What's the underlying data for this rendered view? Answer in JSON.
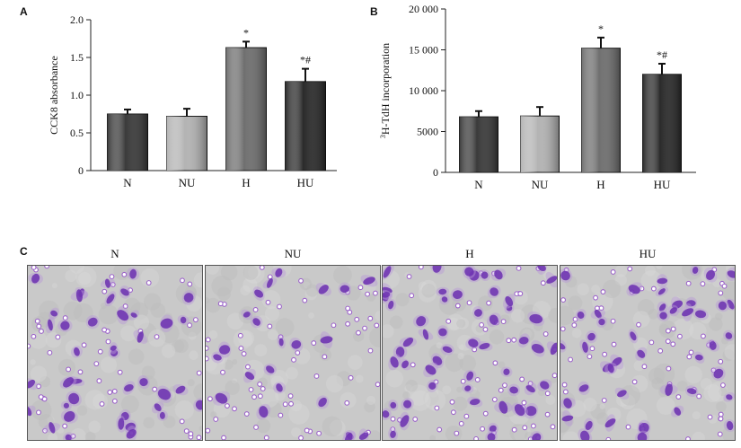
{
  "panels": {
    "a_letter": "A",
    "b_letter": "B",
    "c_letter": "C"
  },
  "chart_data": [
    {
      "type": "bar",
      "categories": [
        "N",
        "NU",
        "H",
        "HU"
      ],
      "values": [
        0.75,
        0.72,
        1.63,
        1.18
      ],
      "errors": [
        0.06,
        0.1,
        0.08,
        0.17
      ],
      "annotations": [
        "",
        "",
        "*",
        "*#"
      ],
      "bar_colors": [
        "#3a3a3a",
        "#b3b3b3",
        "#6f6f6f",
        "#2a2a2a"
      ],
      "ylabel": "CCK8 absorbance",
      "ylim": [
        0,
        2.0
      ],
      "yticks": [
        0,
        0.5,
        1.0,
        1.5,
        2.0
      ],
      "ytick_labels": [
        "0",
        "0.5",
        "1.0",
        "1.5",
        "2.0"
      ],
      "grid": false
    },
    {
      "type": "bar",
      "categories": [
        "N",
        "NU",
        "H",
        "HU"
      ],
      "values": [
        6800,
        6900,
        15200,
        12000
      ],
      "errors": [
        700,
        1100,
        1300,
        1300
      ],
      "annotations": [
        "",
        "",
        "*",
        "*#"
      ],
      "bar_colors": [
        "#3a3a3a",
        "#b3b3b3",
        "#6f6f6f",
        "#2a2a2a"
      ],
      "ylabel_sup": "3",
      "ylabel": "H-TdH incorporation",
      "ylim": [
        0,
        20000
      ],
      "yticks": [
        0,
        5000,
        10000,
        15000,
        20000
      ],
      "ytick_labels": [
        "0",
        "5000",
        "10 000",
        "15 000",
        "20 000"
      ],
      "grid": false
    }
  ],
  "micrographs": [
    {
      "label": "N"
    },
    {
      "label": "NU"
    },
    {
      "label": "H"
    },
    {
      "label": "HU"
    }
  ],
  "colors": {
    "stain": "#6b2fb0",
    "background": "#c9c9c9",
    "pore_ring": "#9b62c9"
  }
}
